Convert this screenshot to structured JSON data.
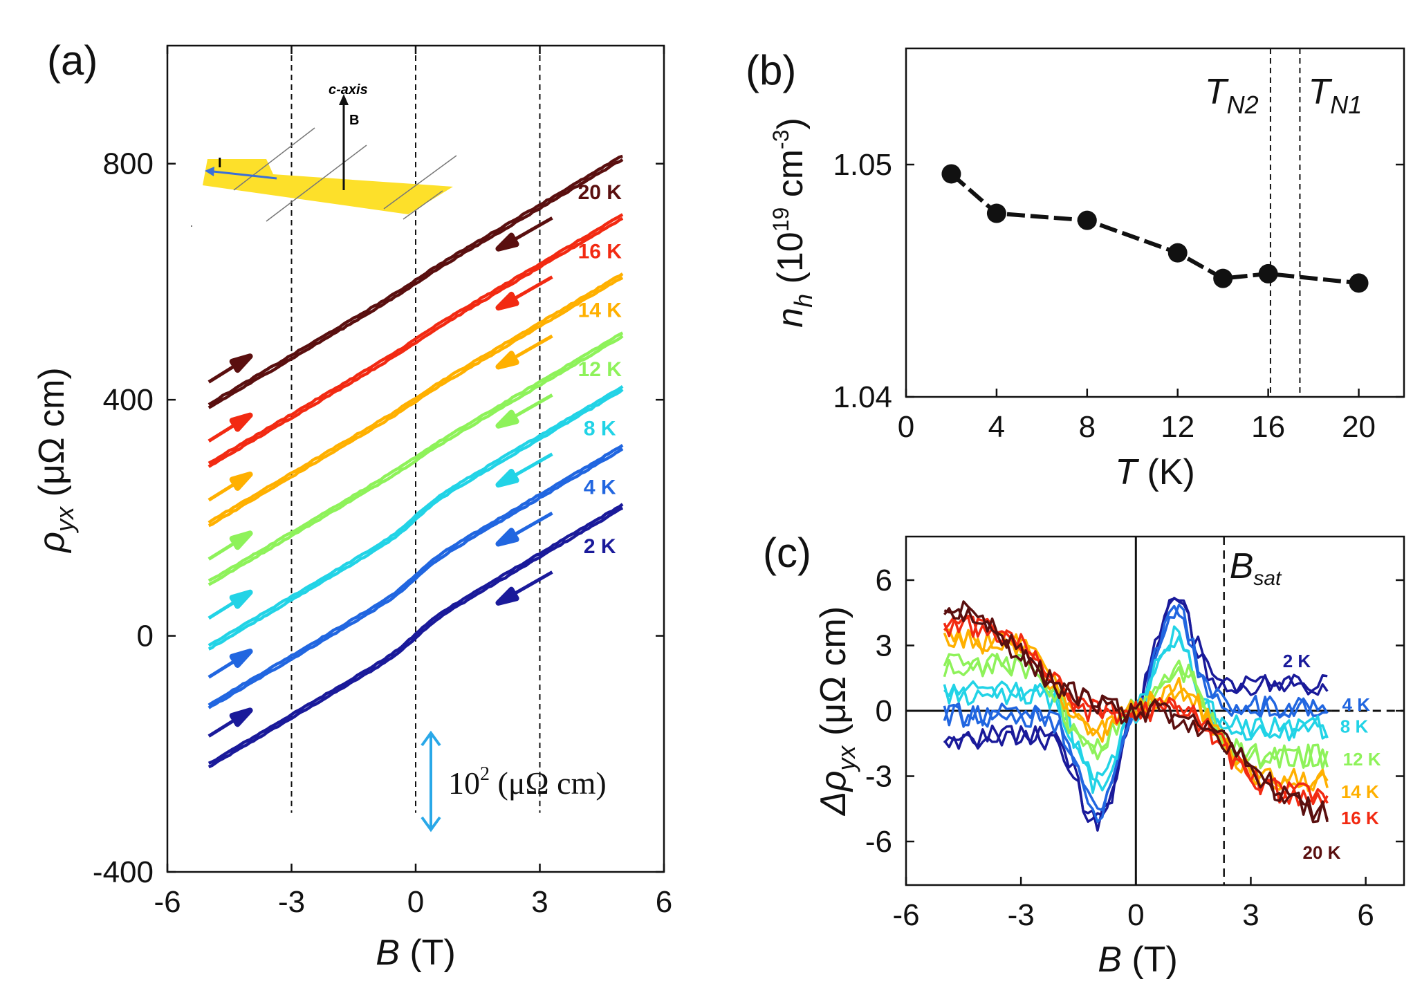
{
  "colors": {
    "2 K": "#1a1a9a",
    "4 K": "#2166e0",
    "8 K": "#22d3e6",
    "12 K": "#8ef25a",
    "14 K": "#ffb000",
    "16 K": "#f22a12",
    "20 K": "#5a0f0f",
    "scale_arrow": "#29a8e8"
  },
  "chart_data": [
    {
      "type": "line",
      "panel_label": "(a)",
      "title": "",
      "xlabel_var": "B",
      "xlabel_unit": " (T)",
      "ylabel_var": "ρ",
      "ylabel_sub": "yx",
      "ylabel_unit": " (μΩ cm)",
      "xlim": [
        -6,
        6
      ],
      "ylim": [
        -400,
        1000
      ],
      "xticks": [
        "-6",
        "-3",
        "0",
        "3",
        "6"
      ],
      "yticks": [
        "-400",
        "0",
        "400",
        "800"
      ],
      "dashed_x": [
        -3,
        0,
        3
      ],
      "inset": {
        "axis_label": "c-axis",
        "field_label": "B",
        "current_label": "I"
      },
      "scale_bar": {
        "label": "10",
        "sup": "2",
        "unit": " (μΩ cm)",
        "value": 100
      },
      "series": [
        {
          "name": "2 K",
          "offset": 0,
          "slope": 41.5
        },
        {
          "name": "4 K",
          "offset": 100,
          "slope": 41.5
        },
        {
          "name": "8 K",
          "offset": 200,
          "slope": 41.5
        },
        {
          "name": "12 K",
          "offset": 300,
          "slope": 41.5
        },
        {
          "name": "14 K",
          "offset": 400,
          "slope": 41.5
        },
        {
          "name": "16 K",
          "offset": 500,
          "slope": 41.5
        },
        {
          "name": "20 K",
          "offset": 600,
          "slope": 41.5
        }
      ]
    },
    {
      "type": "scatter",
      "panel_label": "(b)",
      "xlabel_var": "T",
      "xlabel_unit": " (K)",
      "ylabel_var": "n",
      "ylabel_sub": "h",
      "ylabel_unit_pre": " (10",
      "ylabel_sup1": "19",
      "ylabel_unit_mid": " cm",
      "ylabel_sup2": "-3",
      "ylabel_unit_post": ")",
      "xlim": [
        0,
        22
      ],
      "ylim": [
        1.04,
        1.055
      ],
      "xticks": [
        "0",
        "4",
        "8",
        "12",
        "16",
        "20"
      ],
      "yticks": [
        "1.04",
        "1.05"
      ],
      "x": [
        2,
        4,
        8,
        12,
        14,
        16,
        20
      ],
      "y": [
        1.0496,
        1.0479,
        1.0476,
        1.0462,
        1.0451,
        1.0453,
        1.0449
      ],
      "vlines": [
        {
          "x": 16.1,
          "label": "T",
          "sub": "N2"
        },
        {
          "x": 17.4,
          "label": "T",
          "sub": "N1"
        }
      ]
    },
    {
      "type": "line",
      "panel_label": "(c)",
      "xlabel_var": "B",
      "xlabel_unit": " (T)",
      "ylabel_var": "Δρ",
      "ylabel_sub": "yx",
      "ylabel_unit": " (μΩ cm)",
      "xlim": [
        -6,
        7
      ],
      "ylim": [
        -8,
        8
      ],
      "xticks": [
        "-6",
        "-3",
        "0",
        "3",
        "6"
      ],
      "yticks": [
        "-6",
        "-3",
        "0",
        "3",
        "6"
      ],
      "bsat": {
        "x": 2.3,
        "label": "B",
        "sub": "sat"
      },
      "series": [
        {
          "name": "2 K",
          "peak": 5.2,
          "peak_field": 1.0,
          "high_field": 1.2,
          "width": 0.6
        },
        {
          "name": "4 K",
          "peak": 4.7,
          "peak_field": 1.0,
          "high_field": 0.2,
          "width": 0.6
        },
        {
          "name": "8 K",
          "peak": 3.3,
          "peak_field": 1.0,
          "high_field": -0.8,
          "width": 0.7
        },
        {
          "name": "12 K",
          "peak": 1.6,
          "peak_field": 1.2,
          "high_field": -2.1,
          "width": 0.9
        },
        {
          "name": "14 K",
          "peak": 0.2,
          "peak_field": 1.3,
          "high_field": -3.2,
          "width": 1.2
        },
        {
          "name": "16 K",
          "peak": -1.2,
          "peak_field": 1.5,
          "high_field": -3.9,
          "width": 1.5
        },
        {
          "name": "20 K",
          "peak": -2.5,
          "peak_field": 2.0,
          "high_field": -5.0,
          "width": 2.2
        }
      ]
    }
  ]
}
